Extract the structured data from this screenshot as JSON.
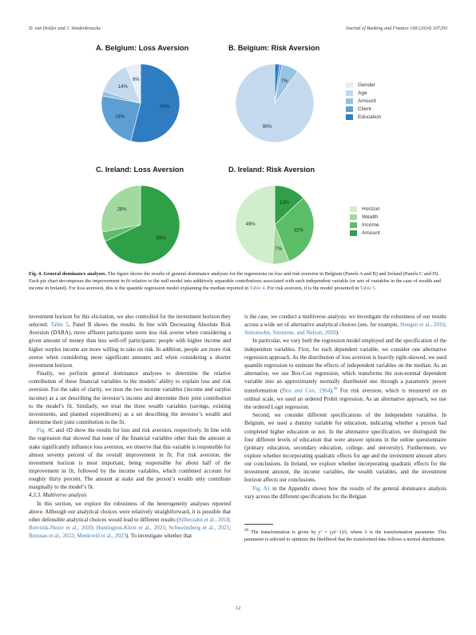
{
  "header": {
    "authors": "D. van Dolder and J. Vandenbroucke",
    "journal": "Journal of Banking and Finance 168 (2024) 107293"
  },
  "figure": {
    "panels": [
      {
        "title": "A. Belgium: Loss Aversion"
      },
      {
        "title": "B. Belgium: Risk Aversion"
      },
      {
        "title": "C. Ireland: Loss Aversion"
      },
      {
        "title": "D. Ireland: Risk Aversion"
      }
    ],
    "legend_belgium": [
      {
        "label": "Gender",
        "color": "#e7eef8"
      },
      {
        "label": "Age",
        "color": "#c5d9ee"
      },
      {
        "label": "Amount",
        "color": "#95c3e2"
      },
      {
        "label": "Client",
        "color": "#5d9fd3"
      },
      {
        "label": "Education",
        "color": "#2f7cc0"
      }
    ],
    "legend_ireland": [
      {
        "label": "Horizon",
        "color": "#d0edcc"
      },
      {
        "label": "Wealth",
        "color": "#a2d99e"
      },
      {
        "label": "Income",
        "color": "#5cbd68"
      },
      {
        "label": "Amount",
        "color": "#2f9f48"
      }
    ]
  },
  "chart_data": [
    {
      "type": "pie",
      "title": "A. Belgium: Loss Aversion",
      "labels": [
        "Education",
        "Client",
        "Amount",
        "Age",
        "Gender"
      ],
      "values": [
        54,
        24,
        2,
        14,
        6
      ],
      "value_labels": [
        "54%",
        "24%",
        "",
        "14%",
        "6%"
      ],
      "colors": [
        "#2f7cc0",
        "#5d9fd3",
        "#95c3e2",
        "#c5d9ee",
        "#e7eef8"
      ]
    },
    {
      "type": "pie",
      "title": "B. Belgium: Risk Aversion",
      "labels": [
        "Education",
        "Client",
        "Amount",
        "Age",
        "Gender"
      ],
      "values": [
        2,
        1,
        7,
        90,
        0
      ],
      "value_labels": [
        "",
        "",
        "7%",
        "90%",
        ""
      ],
      "colors": [
        "#2f7cc0",
        "#5d9fd3",
        "#95c3e2",
        "#c5d9ee",
        "#e7eef8"
      ]
    },
    {
      "type": "pie",
      "title": "C. Ireland: Loss Aversion",
      "labels": [
        "Amount",
        "Income",
        "Wealth",
        "Horizon"
      ],
      "values": [
        68,
        4,
        28,
        0
      ],
      "value_labels": [
        "68%",
        "",
        "28%",
        ""
      ],
      "colors": [
        "#2f9f48",
        "#5cbd68",
        "#a2d99e",
        "#d0edcc"
      ]
    },
    {
      "type": "pie",
      "title": "D. Ireland: Risk Aversion",
      "labels": [
        "Amount",
        "Income",
        "Wealth",
        "Horizon"
      ],
      "values": [
        13,
        31,
        7,
        49
      ],
      "value_labels": [
        "13%",
        "31%",
        "7%",
        "49%"
      ],
      "colors": [
        "#2f9f48",
        "#5cbd68",
        "#a2d99e",
        "#d0edcc"
      ]
    }
  ],
  "caption": {
    "label": "Fig. 4.",
    "heading": "General dominance analyses.",
    "text": " The figure shows the results of general dominance analyses for the regressions on loss and risk aversion in Belgium (Panels A and B) and Ireland (Panels C and D). Each pie chart decomposes the improvement in fit relative to the null model into additively separable contributions associated with each independent variable (or sets of variables in the case of wealth and income in Ireland). For loss aversion, this is the quantile regression model explaining the median reported in ",
    "link1": "Table 4",
    "mid": ". For risk aversion, it is the model presented in ",
    "link2": "Table 5",
    "end": "."
  },
  "left_column": {
    "p1a": "investment horizon for this elicitation, we also controlled for the investment horizon they selected. ",
    "p1link": "Table 5",
    "p1b": ", Panel B shows the results. In line with Decreasing Absolute Risk Aversion (DARA), more affluent participants seem less risk averse when considering a given amount of money than less well-off participants: people with higher income and higher surplus income are more willing to take on risk. In addition, people are more risk averse when considering more significant amounts and when considering a shorter investment horizon.",
    "p2": "Finally, we perform general dominance analyses to determine the relative contribution of these financial variables to the models’ ability to explain loss and risk aversion. For the sake of clarity, we treat the two income variables (income and surplus income) as a set describing the investor’s income and determine their joint contribution to the model’s fit. Similarly, we treat the three wealth variables (savings, existing investments, and planned expenditures) as a set describing the investor’s wealth and determine their joint contribution to the fit.",
    "p3link1": "Fig. 4",
    "p3a": "C and ",
    "p3link2": "4",
    "p3b": "D show the results for loss and risk aversion, respectively. In line with the regression that showed that none of the financial variables other than the amount at stake significantly influence loss aversion, we observe that this variable is responsible for almost seventy percent of the overall improvement in fit. For risk aversion, the investment horizon is most important, being responsible for about half of the improvement in fit, followed by the income variables, which combined account for roughly thirty percent. The amount at stake and the person’s wealth only contribute marginally to the model’s fit.",
    "section": "4.3.3.  Multiverse analysis",
    "p4a": "In this section, we explore the robustness of the heterogeneity analyses reported above. Although our analytical choices were relatively straightforward, it is possible that other defensible analytical choices would lead to different results (",
    "p4ref1": "Silberzahn et al., 2018",
    "p4ref2": "Botvinik-Nezer et al., 2020",
    "p4ref3": "Huntington-Klein et al., 2021",
    "p4ref4": "Schweinsberg et al., 2021",
    "p4ref5": "Breznau et al., 2022",
    "p4ref6": "Menkveld et al., 2023",
    "p4b": "). To investigate whether that"
  },
  "right_column": {
    "p1a": "is the case, we conduct a multiverse analysis: we investigate the robustness of our results across a wide set of alternative analytical choices (see, for example, ",
    "p1ref1": "Steegen et al., 2016",
    "p1ref2": "Simonsohn, Simmons, and Nelson, 2020",
    "p1b": ").",
    "p2a": "In particular, we vary both the regression model employed and the specification of the independent variables. First, for each dependent variable, we consider one alternative regression approach. As the distribution of loss aversion is heavily right-skewed, we used quantile regression to estimate the effects of independent variables on the median. As an alternative, we use Box-Cox regression, which transforms the non-normal dependent variable into an approximately normally distributed one through a parametric power transformation (",
    "p2ref": "Box and Cox, 1964",
    "p2sup": "26",
    "p2b": " For risk aversion, which is measured on an ordinal scale, we used an ordered Probit regression. As an alternative approach, we use the ordered Logit regression.",
    "p3": "Second, we consider different specifications of the independent variables. In Belgium, we used a dummy variable for education, indicating whether a person had completed higher education or not. In the alternative specification, we distinguish the four different levels of education that were answer options in the online questionnaire (primary education, secondary education, college, and university). Furthermore, we explore whether incorporating quadratic effects for age and the investment amount alters our conclusions. In Ireland, we explore whether incorporating quadratic effects for the investment amount, the income variables, the wealth variables, and the investment horizon affects our conclusions.",
    "p4link": "Fig. A1",
    "p4b": " in the Appendix shows how the results of the general dominance analysis vary across the different specifications for the Belgian"
  },
  "footnote": {
    "num": "26",
    "a": " The transformation is given by ",
    "formula": "y′ = (yλ−1)/λ",
    "b": ", where λ is the transformation parameter. This parameter is selected to optimize the likelihood that the transformed data follows a normal distribution."
  },
  "page_number": "12"
}
